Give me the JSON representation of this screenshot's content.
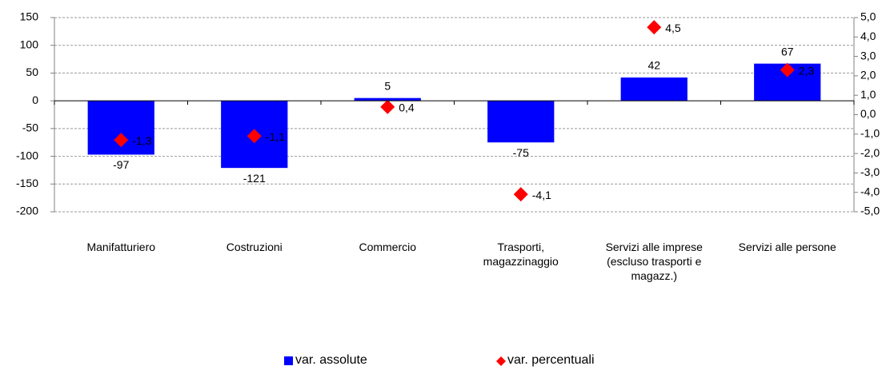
{
  "chart_data": {
    "type": "bar",
    "categories": [
      "Manifatturiero",
      "Costruzioni",
      "Commercio",
      "Trasporti, magazzinaggio",
      "Servizi alle imprese (escluso trasporti e magazz.)",
      "Servizi alle persone"
    ],
    "series": [
      {
        "name": "var. assolute",
        "type": "bar",
        "color": "#0000ff",
        "axis": "y",
        "values": [
          -97,
          -121,
          5,
          -75,
          42,
          67
        ]
      },
      {
        "name": "var. percentuali",
        "type": "scatter",
        "color": "#ff0000",
        "axis": "y2",
        "values": [
          -1.3,
          -1.1,
          0.4,
          -4.1,
          4.5,
          2.3
        ],
        "value_labels": [
          "-1,3",
          "-1,1",
          "0,4",
          "-4,1",
          "4,5",
          "2,3"
        ]
      }
    ],
    "ylim": [
      -200,
      150
    ],
    "yticks": [
      -200,
      -150,
      -100,
      -50,
      0,
      50,
      100,
      150
    ],
    "y2lim": [
      -5,
      5
    ],
    "y2ticks": [
      {
        "value": -5,
        "label": "-5,0"
      },
      {
        "value": -4,
        "label": "-4,0"
      },
      {
        "value": -3,
        "label": "-3,0"
      },
      {
        "value": -2,
        "label": "-2,0"
      },
      {
        "value": -1,
        "label": "-1,0"
      },
      {
        "value": 0,
        "label": "0,0"
      },
      {
        "value": 1,
        "label": "1,0"
      },
      {
        "value": 2,
        "label": "2,0"
      },
      {
        "value": 3,
        "label": "3,0"
      },
      {
        "value": 4,
        "label": "4,0"
      },
      {
        "value": 5,
        "label": "5,0"
      }
    ],
    "grid": true,
    "legend": "bottom"
  }
}
